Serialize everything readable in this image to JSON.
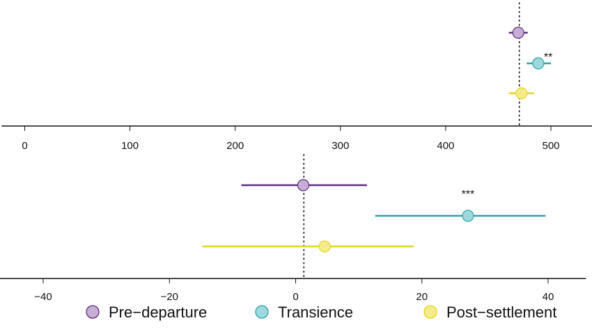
{
  "chart_data": [
    {
      "type": "scatter",
      "subtype": "forest-plot",
      "title": "",
      "xlabel": "",
      "ylabel": "",
      "xlim": [
        -22,
        545
      ],
      "ticks": [
        0,
        100,
        200,
        300,
        400,
        500
      ],
      "reference_line": 470,
      "series": [
        {
          "key": "pre",
          "estimate": 469,
          "ci": [
            460,
            478
          ],
          "significance": ""
        },
        {
          "key": "trans",
          "estimate": 488,
          "ci": [
            477,
            500
          ],
          "significance": "**"
        },
        {
          "key": "post",
          "estimate": 472,
          "ci": [
            460,
            484
          ],
          "significance": ""
        }
      ],
      "grid": false
    },
    {
      "type": "scatter",
      "subtype": "forest-plot",
      "title": "",
      "xlabel": "",
      "ylabel": "",
      "xlim": [
        -47,
        46
      ],
      "ticks": [
        -40,
        -20,
        0,
        20,
        40
      ],
      "tick_labels": [
        "−40",
        "−20",
        "0",
        "20",
        "40"
      ],
      "reference_line": 1.3,
      "series": [
        {
          "key": "pre",
          "estimate": 1.2,
          "ci": [
            -8.6,
            11.3
          ],
          "significance": ""
        },
        {
          "key": "trans",
          "estimate": 27.3,
          "ci": [
            12.6,
            39.6
          ],
          "significance": "***"
        },
        {
          "key": "post",
          "estimate": 4.6,
          "ci": [
            -14.8,
            18.7
          ],
          "significance": ""
        }
      ],
      "grid": false
    }
  ],
  "legend": {
    "placement": "bottom",
    "items": [
      {
        "key": "pre",
        "label": "Pre−departure"
      },
      {
        "key": "trans",
        "label": "Transience"
      },
      {
        "key": "post",
        "label": "Post−settlement"
      }
    ]
  },
  "colors": {
    "pre": {
      "line": "#5e2d79",
      "fill": "#c7aed6"
    },
    "trans": {
      "line": "#2ba3a8",
      "fill": "#9dd9dc"
    },
    "post": {
      "line": "#e6d520",
      "fill": "#f4ec8c"
    },
    "axis": "#111111"
  }
}
